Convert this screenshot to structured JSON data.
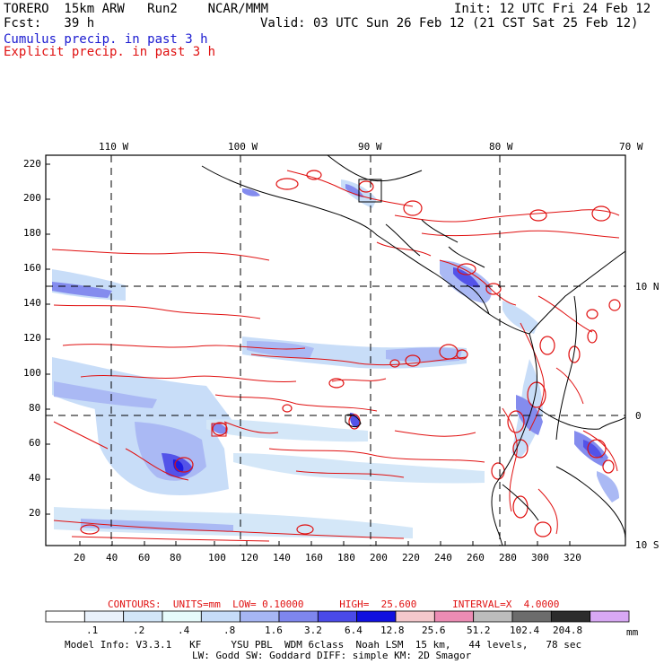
{
  "header": {
    "model": "TORERO  15km ARW   Run2    NCAR/MMM",
    "init": "Init: 12 UTC Fri 24 Feb 12",
    "fcst": "Fcst:   39 h",
    "valid": "Valid: 03 UTC Sun 26 Feb 12 (21 CST Sat 25 Feb 12)",
    "field1": "Cumulus precip. in past 3 h",
    "field2": "Explicit precip. in past 3 h"
  },
  "map": {
    "top_lon_labels": [
      "110 W",
      "100 W",
      "90 W",
      "80 W",
      "70 W"
    ],
    "right_lat_labels": [
      "10 N",
      "0",
      "10 S"
    ],
    "y_ticks": [
      "220",
      "200",
      "180",
      "160",
      "140",
      "120",
      "100",
      "80",
      "60",
      "40",
      "20"
    ],
    "x_ticks": [
      "20",
      "40",
      "60",
      "80",
      "100",
      "120",
      "140",
      "160",
      "180",
      "200",
      "220",
      "240",
      "260",
      "280",
      "300",
      "320"
    ],
    "colors": {
      "contour": "#e01010",
      "grid": "#000000",
      "coast": "#000000"
    }
  },
  "contours_line": "CONTOURS:  UNITS=mm  LOW= 0.10000      HIGH=  25.600      INTERVAL=X  4.0000",
  "colorbar": {
    "labels": [
      ".1",
      ".2",
      ".4",
      ".8",
      "1.6",
      "3.2",
      "6.4",
      "12.8",
      "25.6",
      "51.2",
      "102.4",
      "204.8"
    ],
    "unit": "mm",
    "colors": [
      "#ffffff",
      "#e9f1fb",
      "#d2e6f8",
      "#e6fbfb",
      "#c6dcf8",
      "#a6b6f4",
      "#7e86ee",
      "#4a4ae8",
      "#1010e0",
      "#f4c8cc",
      "#ec8cb4",
      "#bcbcbc",
      "#6c6c6c",
      "#2c2c2c",
      "#d8a8f4"
    ]
  },
  "footer": {
    "line1": "Model Info: V3.3.1   KF     YSU PBL  WDM 6class  Noah LSM  15 km,   44 levels,   78 sec",
    "line2": "LW: Godd SW: Goddard DIFF: simple KM: 2D Smagor"
  }
}
